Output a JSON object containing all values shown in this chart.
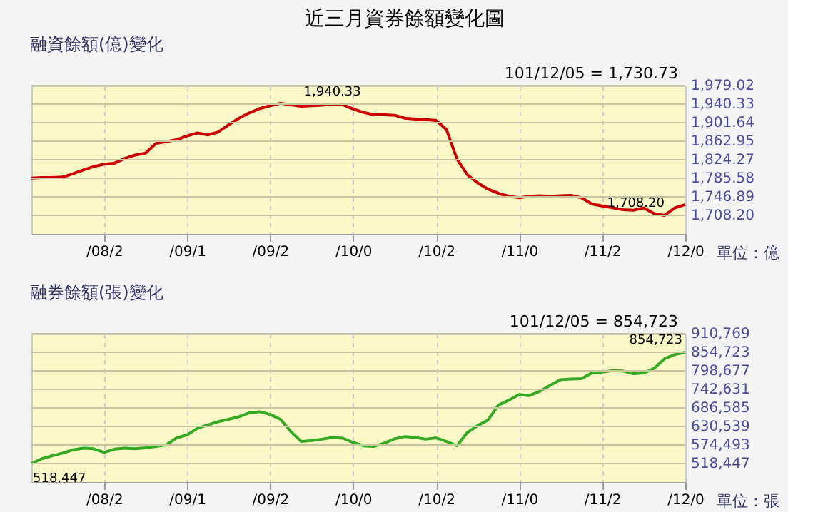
{
  "chart_data": [
    {
      "type": "line",
      "title": "近三月資券餘額變化圖",
      "subtitle": "融資餘額(億)變化",
      "categories": [
        null,
        null,
        null,
        null,
        null,
        null,
        null,
        "/08/2",
        null,
        null,
        null,
        null,
        null,
        null,
        null,
        "/09/1",
        null,
        null,
        null,
        null,
        null,
        null,
        null,
        "/09/2",
        null,
        null,
        null,
        null,
        null,
        null,
        null,
        "/10/0",
        null,
        null,
        null,
        null,
        null,
        null,
        null,
        "/10/2",
        null,
        null,
        null,
        null,
        null,
        null,
        null,
        "/11/0",
        null,
        null,
        null,
        null,
        null,
        null,
        null,
        "/11/2",
        null,
        null,
        null,
        null,
        null,
        null,
        null,
        "/12/0"
      ],
      "series": [
        {
          "color": "#cc0000",
          "values": [
            1786,
            1787,
            1787,
            1788,
            1795,
            1803,
            1810,
            1815,
            1817,
            1827,
            1834,
            1838,
            1858,
            1862,
            1866,
            1874,
            1880,
            1876,
            1882,
            1897,
            1911,
            1922,
            1931,
            1937,
            1942,
            1939,
            1936,
            1937,
            1938,
            1940.33,
            1939,
            1930,
            1923,
            1918,
            1918,
            1917,
            1911,
            1909,
            1908,
            1906,
            1887,
            1826,
            1793,
            1776,
            1763,
            1754,
            1748,
            1745,
            1748,
            1749,
            1748,
            1749,
            1750,
            1745,
            1732,
            1728,
            1724,
            1720,
            1719,
            1724,
            1712,
            1708.2,
            1724,
            1730.73
          ]
        }
      ],
      "ylim": [
        1669.51,
        1979.02
      ],
      "yticks": [
        {
          "value": 1708.2,
          "label": "1,708.20"
        },
        {
          "value": 1746.89,
          "label": "1,746.89"
        },
        {
          "value": 1785.58,
          "label": "1,785.58"
        },
        {
          "value": 1824.27,
          "label": "1,824.27"
        },
        {
          "value": 1862.95,
          "label": "1,862.95"
        },
        {
          "value": 1901.64,
          "label": "1,901.64"
        },
        {
          "value": 1940.33,
          "label": "1,940.33"
        },
        {
          "value": 1979.02,
          "label": "1,979.02"
        }
      ],
      "annotations": [
        "101/12/05 = 1,730.73",
        "單位：億",
        {
          "text": "1,940.33",
          "y": 1940.33
        },
        {
          "text": "1,708.20",
          "y": 1708.2
        }
      ],
      "grid": true,
      "marker": "none",
      "line_style": "solid"
    },
    {
      "type": "line",
      "subtitle": "融券餘額(張)變化",
      "categories": [
        null,
        null,
        null,
        null,
        null,
        null,
        null,
        "/08/2",
        null,
        null,
        null,
        null,
        null,
        null,
        null,
        "/09/1",
        null,
        null,
        null,
        null,
        null,
        null,
        null,
        "/09/2",
        null,
        null,
        null,
        null,
        null,
        null,
        null,
        "/10/0",
        null,
        null,
        null,
        null,
        null,
        null,
        null,
        "/10/2",
        null,
        null,
        null,
        null,
        null,
        null,
        null,
        "/11/0",
        null,
        null,
        null,
        null,
        null,
        null,
        null,
        "/11/2",
        null,
        null,
        null,
        null,
        null,
        null,
        null,
        "/12/0"
      ],
      "series": [
        {
          "color": "#33aa22",
          "values": [
            518447,
            533000,
            542000,
            550000,
            560000,
            565000,
            563000,
            552000,
            562000,
            565000,
            563000,
            566000,
            570000,
            575000,
            596000,
            605000,
            625000,
            635000,
            645000,
            652000,
            660000,
            672000,
            675000,
            667000,
            652000,
            615000,
            585000,
            588000,
            592000,
            597000,
            595000,
            582000,
            572000,
            570000,
            580000,
            593000,
            600000,
            597000,
            592000,
            596000,
            585000,
            572000,
            612000,
            633000,
            650000,
            695000,
            710000,
            727000,
            724000,
            737000,
            755000,
            772000,
            774000,
            775000,
            792000,
            795000,
            799000,
            798000,
            790000,
            792000,
            806000,
            835000,
            848000,
            854723
          ]
        }
      ],
      "ylim": [
        462401,
        910769
      ],
      "yticks": [
        {
          "value": 518447,
          "label": "518,447"
        },
        {
          "value": 574493,
          "label": "574,493"
        },
        {
          "value": 630539,
          "label": "630,539"
        },
        {
          "value": 686585,
          "label": "686,585"
        },
        {
          "value": 742631,
          "label": "742,631"
        },
        {
          "value": 798677,
          "label": "798,677"
        },
        {
          "value": 854723,
          "label": "854,723"
        },
        {
          "value": 910769,
          "label": "910,769"
        }
      ],
      "annotations": [
        "101/12/05 = 854,723",
        "單位：張",
        "518,447",
        "854,723"
      ],
      "grid": true,
      "marker": "none",
      "line_style": "solid"
    }
  ]
}
